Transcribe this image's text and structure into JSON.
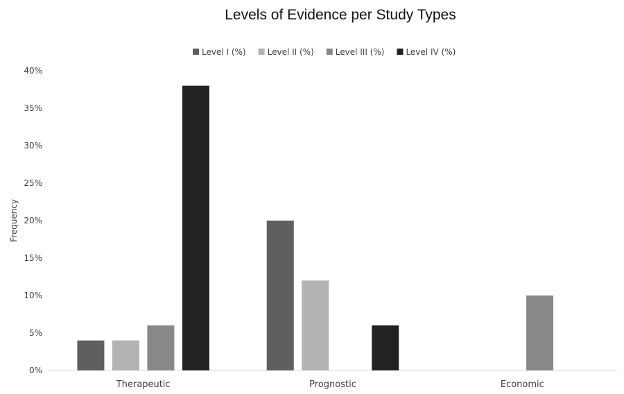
{
  "chart_data": {
    "type": "bar",
    "title": "Levels of Evidence per Study Types",
    "xlabel": "",
    "ylabel": "Frequency",
    "categories": [
      "Therapeutic",
      "Prognostic",
      "Economic"
    ],
    "series": [
      {
        "name": "Level I (%)",
        "color": "#5f5f5f",
        "values": [
          0.04,
          0.2,
          0
        ]
      },
      {
        "name": "Level II (%)",
        "color": "#b3b3b3",
        "values": [
          0.04,
          0.12,
          0
        ]
      },
      {
        "name": "Level III (%)",
        "color": "#888888",
        "values": [
          0.06,
          0,
          0.1
        ]
      },
      {
        "name": "Level IV (%)",
        "color": "#222222",
        "values": [
          0.38,
          0.06,
          0
        ]
      }
    ],
    "ylim": [
      0,
      0.4
    ],
    "yticks": [
      "0%",
      "5%",
      "10%",
      "15%",
      "20%",
      "25%",
      "30%",
      "35%",
      "40%"
    ],
    "grid": false,
    "legend_position": "top"
  }
}
